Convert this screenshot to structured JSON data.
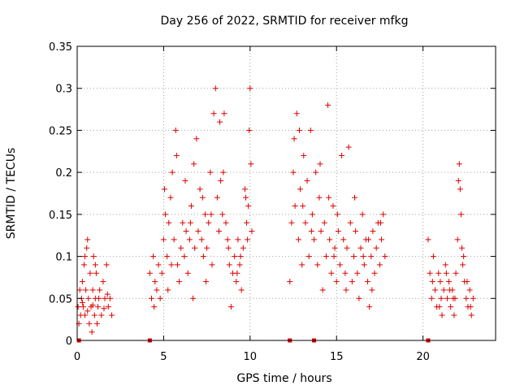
{
  "chart_data": {
    "type": "scatter",
    "title": "Day 256 of 2022, SRMTID for receiver mfkg",
    "xlabel": "GPS time / hours",
    "ylabel": "SRMTID / TECUs",
    "xlim": [
      0,
      24.2
    ],
    "ylim": [
      0,
      0.35
    ],
    "xticks": [
      0,
      5,
      10,
      15,
      20
    ],
    "xtick_labels": [
      "0",
      "5",
      "10",
      "15",
      "20"
    ],
    "yticks": [
      0,
      0.05,
      0.1,
      0.15,
      0.2,
      0.25,
      0.3,
      0.35
    ],
    "ytick_labels": [
      "0",
      "0.05",
      "0.1",
      "0.15",
      "0.2",
      "0.25",
      "0.3",
      "0.35"
    ],
    "grid": true,
    "marker": "+",
    "color": "#e00000",
    "zero_markers_x": [
      0.1,
      4.2,
      12.3,
      13.7,
      20.3
    ],
    "series": [
      {
        "name": "SRMTID",
        "points": [
          [
            0.05,
            0.04
          ],
          [
            0.1,
            0.02
          ],
          [
            0.15,
            0.06
          ],
          [
            0.2,
            0.03
          ],
          [
            0.25,
            0.05
          ],
          [
            0.3,
            0.07
          ],
          [
            0.35,
            0.04
          ],
          [
            0.4,
            0.09
          ],
          [
            0.45,
            0.03
          ],
          [
            0.5,
            0.06
          ],
          [
            0.55,
            0.11
          ],
          [
            0.6,
            0.12
          ],
          [
            0.65,
            0.05
          ],
          [
            0.7,
            0.02
          ],
          [
            0.75,
            0.08
          ],
          [
            0.8,
            0.04
          ],
          [
            0.85,
            0.01
          ],
          [
            0.9,
            0.06
          ],
          [
            0.95,
            0.1
          ],
          [
            1.0,
            0.03
          ],
          [
            1.05,
            0.05
          ],
          [
            1.1,
            0.08
          ],
          [
            1.15,
            0.02
          ],
          [
            1.2,
            0.04
          ],
          [
            1.3,
            0.06
          ],
          [
            1.4,
            0.03
          ],
          [
            1.5,
            0.07
          ],
          [
            1.6,
            0.05
          ],
          [
            1.7,
            0.09
          ],
          [
            1.8,
            0.04
          ],
          [
            1.9,
            0.05
          ],
          [
            2.0,
            0.03
          ],
          [
            0.3,
            0.045
          ],
          [
            0.6,
            0.035
          ],
          [
            0.9,
            0.042
          ],
          [
            1.25,
            0.05
          ],
          [
            1.55,
            0.038
          ],
          [
            1.75,
            0.055
          ],
          [
            0.45,
            0.1
          ],
          [
            1.05,
            0.09
          ],
          [
            4.2,
            0.08
          ],
          [
            4.3,
            0.05
          ],
          [
            4.4,
            0.1
          ],
          [
            4.45,
            0.04
          ],
          [
            4.5,
            0.07
          ],
          [
            4.6,
            0.06
          ],
          [
            4.7,
            0.09
          ],
          [
            4.8,
            0.05
          ],
          [
            4.9,
            0.08
          ],
          [
            5.0,
            0.12
          ],
          [
            5.05,
            0.18
          ],
          [
            5.1,
            0.15
          ],
          [
            5.2,
            0.1
          ],
          [
            5.3,
            0.14
          ],
          [
            5.4,
            0.17
          ],
          [
            5.5,
            0.2
          ],
          [
            5.6,
            0.12
          ],
          [
            5.7,
            0.25
          ],
          [
            5.8,
            0.09
          ],
          [
            5.9,
            0.07
          ],
          [
            6.0,
            0.11
          ],
          [
            6.1,
            0.14
          ],
          [
            6.2,
            0.1
          ],
          [
            6.3,
            0.13
          ],
          [
            6.4,
            0.08
          ],
          [
            6.5,
            0.12
          ],
          [
            6.6,
            0.16
          ],
          [
            6.7,
            0.05
          ],
          [
            6.8,
            0.11
          ],
          [
            6.9,
            0.24
          ],
          [
            7.0,
            0.13
          ],
          [
            7.1,
            0.18
          ],
          [
            7.2,
            0.12
          ],
          [
            7.3,
            0.1
          ],
          [
            7.4,
            0.15
          ],
          [
            7.5,
            0.11
          ],
          [
            7.6,
            0.14
          ],
          [
            7.7,
            0.2
          ],
          [
            7.8,
            0.09
          ],
          [
            7.9,
            0.27
          ],
          [
            8.0,
            0.3
          ],
          [
            8.1,
            0.17
          ],
          [
            8.2,
            0.13
          ],
          [
            8.3,
            0.19
          ],
          [
            8.4,
            0.15
          ],
          [
            8.5,
            0.27
          ],
          [
            8.6,
            0.14
          ],
          [
            8.7,
            0.12
          ],
          [
            8.8,
            0.09
          ],
          [
            8.9,
            0.04
          ],
          [
            9.0,
            0.08
          ],
          [
            9.1,
            0.1
          ],
          [
            9.2,
            0.07
          ],
          [
            9.3,
            0.12
          ],
          [
            9.4,
            0.09
          ],
          [
            9.5,
            0.06
          ],
          [
            9.6,
            0.11
          ],
          [
            9.7,
            0.18
          ],
          [
            9.8,
            0.14
          ],
          [
            9.9,
            0.16
          ],
          [
            10.0,
            0.3
          ],
          [
            10.05,
            0.21
          ],
          [
            10.1,
            0.13
          ],
          [
            5.25,
            0.06
          ],
          [
            5.75,
            0.22
          ],
          [
            6.25,
            0.19
          ],
          [
            6.75,
            0.21
          ],
          [
            7.25,
            0.17
          ],
          [
            7.75,
            0.15
          ],
          [
            8.25,
            0.26
          ],
          [
            8.75,
            0.11
          ],
          [
            9.25,
            0.08
          ],
          [
            9.75,
            0.17
          ],
          [
            9.95,
            0.25
          ],
          [
            5.45,
            0.09
          ],
          [
            6.55,
            0.14
          ],
          [
            7.45,
            0.07
          ],
          [
            8.45,
            0.2
          ],
          [
            9.45,
            0.1
          ],
          [
            9.85,
            0.12
          ],
          [
            12.3,
            0.07
          ],
          [
            12.4,
            0.14
          ],
          [
            12.5,
            0.2
          ],
          [
            12.6,
            0.16
          ],
          [
            12.7,
            0.27
          ],
          [
            12.8,
            0.12
          ],
          [
            12.9,
            0.18
          ],
          [
            13.0,
            0.09
          ],
          [
            13.1,
            0.22
          ],
          [
            13.2,
            0.14
          ],
          [
            13.3,
            0.19
          ],
          [
            13.4,
            0.1
          ],
          [
            13.5,
            0.25
          ],
          [
            13.6,
            0.15
          ],
          [
            13.7,
            0.12
          ],
          [
            13.8,
            0.2
          ],
          [
            13.9,
            0.09
          ],
          [
            14.0,
            0.17
          ],
          [
            14.1,
            0.13
          ],
          [
            14.2,
            0.06
          ],
          [
            14.3,
            0.14
          ],
          [
            14.4,
            0.1
          ],
          [
            14.5,
            0.28
          ],
          [
            14.6,
            0.12
          ],
          [
            14.7,
            0.08
          ],
          [
            14.8,
            0.16
          ],
          [
            14.9,
            0.11
          ],
          [
            15.0,
            0.07
          ],
          [
            15.1,
            0.13
          ],
          [
            15.2,
            0.09
          ],
          [
            15.3,
            0.22
          ],
          [
            15.4,
            0.12
          ],
          [
            15.5,
            0.08
          ],
          [
            15.6,
            0.11
          ],
          [
            15.7,
            0.23
          ],
          [
            15.8,
            0.14
          ],
          [
            15.9,
            0.07
          ],
          [
            16.0,
            0.1
          ],
          [
            16.1,
            0.13
          ],
          [
            16.2,
            0.08
          ],
          [
            16.3,
            0.05
          ],
          [
            16.4,
            0.11
          ],
          [
            16.5,
            0.15
          ],
          [
            16.6,
            0.09
          ],
          [
            16.7,
            0.12
          ],
          [
            16.8,
            0.07
          ],
          [
            16.9,
            0.04
          ],
          [
            17.0,
            0.1
          ],
          [
            17.1,
            0.13
          ],
          [
            17.2,
            0.08
          ],
          [
            17.3,
            0.11
          ],
          [
            17.4,
            0.14
          ],
          [
            17.5,
            0.09
          ],
          [
            17.6,
            0.12
          ],
          [
            17.7,
            0.15
          ],
          [
            17.8,
            0.1
          ],
          [
            12.55,
            0.24
          ],
          [
            13.05,
            0.16
          ],
          [
            13.55,
            0.13
          ],
          [
            14.05,
            0.21
          ],
          [
            14.55,
            0.17
          ],
          [
            15.05,
            0.15
          ],
          [
            15.55,
            0.06
          ],
          [
            16.05,
            0.17
          ],
          [
            16.55,
            0.1
          ],
          [
            17.05,
            0.06
          ],
          [
            17.55,
            0.14
          ],
          [
            12.85,
            0.25
          ],
          [
            14.85,
            0.1
          ],
          [
            16.85,
            0.12
          ],
          [
            20.3,
            0.12
          ],
          [
            20.4,
            0.08
          ],
          [
            20.5,
            0.05
          ],
          [
            20.6,
            0.1
          ],
          [
            20.7,
            0.06
          ],
          [
            20.8,
            0.04
          ],
          [
            20.9,
            0.08
          ],
          [
            21.0,
            0.07
          ],
          [
            21.1,
            0.03
          ],
          [
            21.2,
            0.06
          ],
          [
            21.3,
            0.09
          ],
          [
            21.4,
            0.05
          ],
          [
            21.5,
            0.07
          ],
          [
            21.6,
            0.04
          ],
          [
            21.7,
            0.06
          ],
          [
            21.8,
            0.03
          ],
          [
            21.9,
            0.08
          ],
          [
            22.0,
            0.12
          ],
          [
            22.1,
            0.21
          ],
          [
            22.15,
            0.18
          ],
          [
            22.2,
            0.15
          ],
          [
            22.3,
            0.09
          ],
          [
            22.4,
            0.07
          ],
          [
            22.5,
            0.05
          ],
          [
            22.6,
            0.04
          ],
          [
            22.7,
            0.06
          ],
          [
            22.8,
            0.03
          ],
          [
            22.9,
            0.05
          ],
          [
            21.05,
            0.05
          ],
          [
            21.55,
            0.06
          ],
          [
            21.75,
            0.05
          ],
          [
            22.05,
            0.19
          ],
          [
            22.25,
            0.11
          ],
          [
            22.55,
            0.07
          ],
          [
            22.75,
            0.04
          ],
          [
            20.55,
            0.07
          ],
          [
            20.95,
            0.04
          ],
          [
            21.35,
            0.08
          ],
          [
            21.85,
            0.05
          ],
          [
            22.35,
            0.1
          ]
        ]
      }
    ]
  }
}
